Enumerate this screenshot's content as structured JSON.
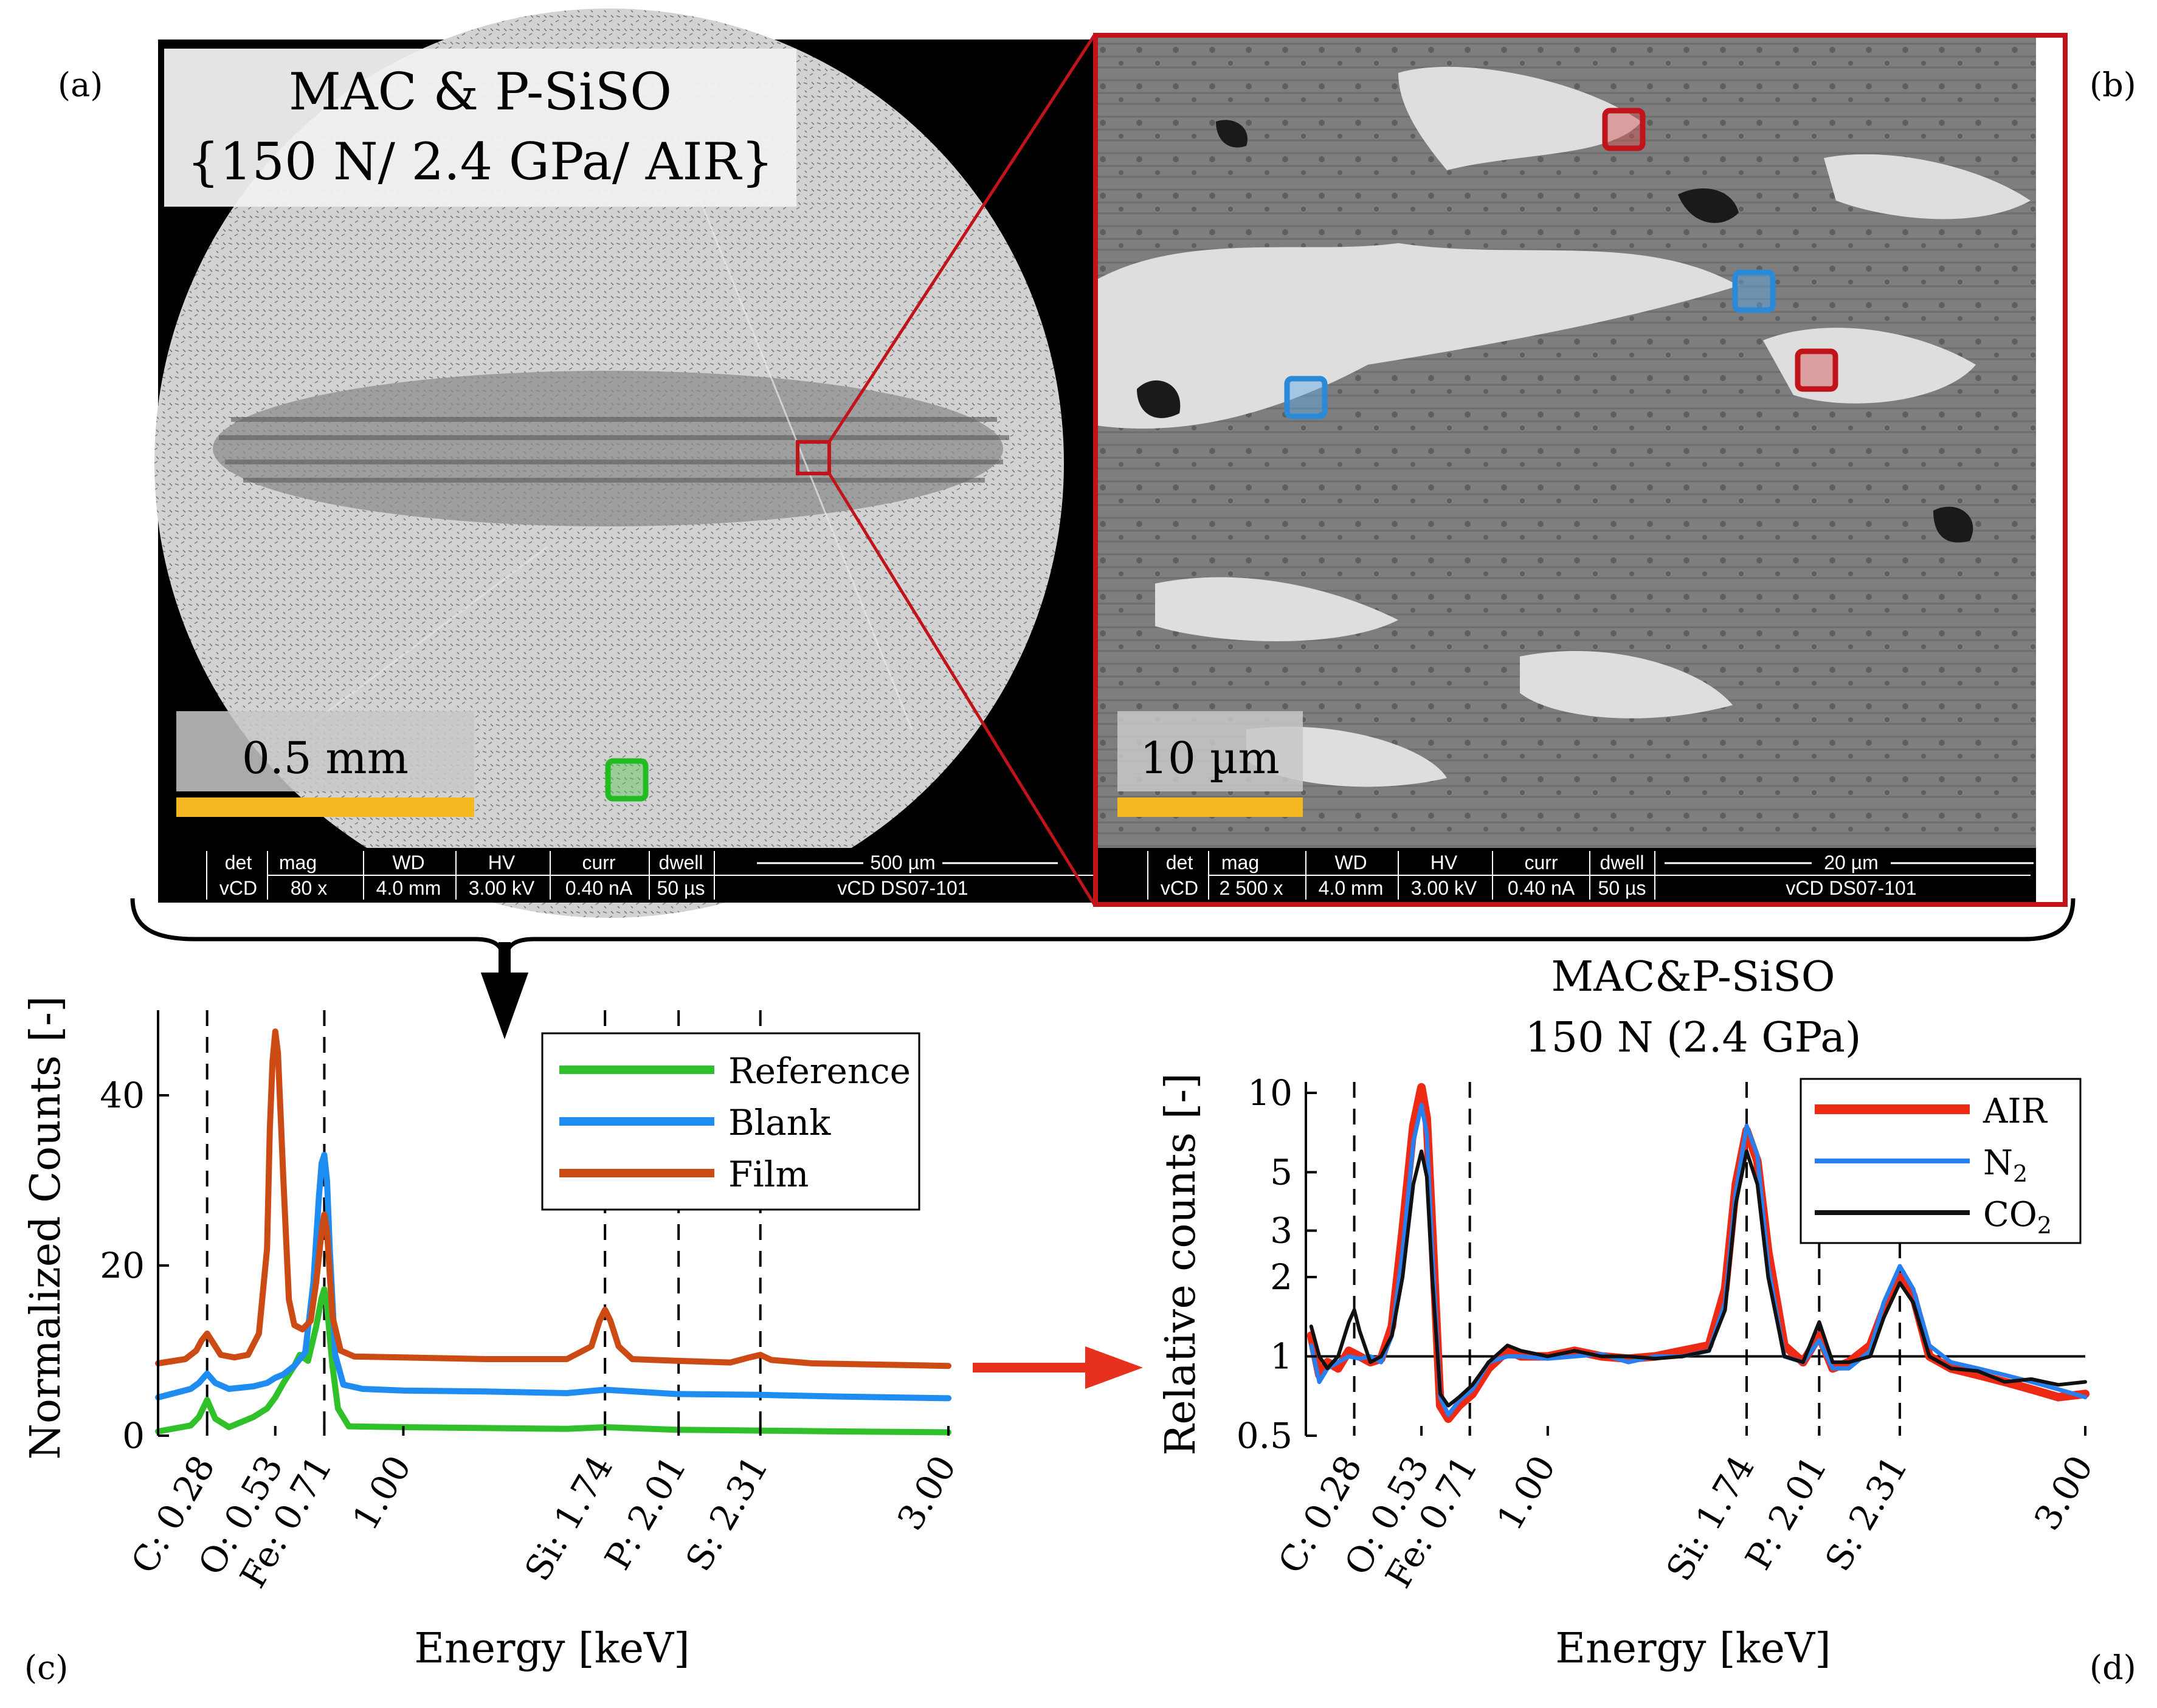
{
  "panel_labels": {
    "a": "(a)",
    "b": "(b)",
    "c": "(c)",
    "d": "(d)"
  },
  "sem_a": {
    "title_line1": "MAC & P-SiSO",
    "title_line2": "{150 N/ 2.4 GPa/ AIR}",
    "scalebar_label": "0.5 mm",
    "info_bar": {
      "headers": [
        "det",
        "mag",
        "WD",
        "HV",
        "curr",
        "dwell",
        "500 µm"
      ],
      "values": [
        "vCD",
        "80 x",
        "4.0 mm",
        "3.00 kV",
        "0.40 nA",
        "50 µs",
        "vCD DS07-101"
      ]
    }
  },
  "sem_b": {
    "scalebar_label": "10 µm",
    "info_bar": {
      "headers": [
        "det",
        "mag",
        "WD",
        "HV",
        "curr",
        "dwell",
        "20 µm"
      ],
      "values": [
        "vCD",
        "2 500 x",
        "4.0 mm",
        "3.00 kV",
        "0.40 nA",
        "50 µs",
        "vCD DS07-101"
      ]
    }
  },
  "colors": {
    "reference": "#2fc02a",
    "blank": "#1e8cf0",
    "film": "#cc4a14",
    "air": "#ef2a14",
    "n2": "#2a7fef",
    "co2": "#111111",
    "highlight_red": "#c0141a",
    "highlight_blue": "#2a8ad8",
    "highlight_green": "#22bb22",
    "scalebar": "#f5b820"
  },
  "chart_data": [
    {
      "id": "c",
      "type": "line",
      "title": "",
      "xlabel": "Energy [keV]",
      "ylabel": "Normalized Counts [-]",
      "xlim": [
        0.1,
        3.0
      ],
      "ylim": [
        0,
        50
      ],
      "yticks": [
        0,
        20,
        40
      ],
      "xticks": [
        {
          "value": 0.28,
          "label": "C: 0.28"
        },
        {
          "value": 0.53,
          "label": "O: 0.53"
        },
        {
          "value": 0.71,
          "label": "Fe: 0.71"
        },
        {
          "value": 1.0,
          "label": "1.00"
        },
        {
          "value": 1.74,
          "label": "Si: 1.74"
        },
        {
          "value": 2.01,
          "label": "P: 2.01"
        },
        {
          "value": 2.31,
          "label": "S: 2.31"
        },
        {
          "value": 3.0,
          "label": "3.00"
        }
      ],
      "dashed_lines": [
        0.28,
        0.71,
        1.74,
        2.01,
        2.31
      ],
      "legend": "top-right",
      "series": [
        {
          "name": "Reference",
          "x": [
            0.1,
            0.22,
            0.25,
            0.28,
            0.31,
            0.36,
            0.45,
            0.5,
            0.53,
            0.56,
            0.6,
            0.62,
            0.65,
            0.68,
            0.7,
            0.71,
            0.72,
            0.74,
            0.76,
            0.8,
            1.0,
            1.3,
            1.6,
            1.74,
            2.0,
            2.31,
            2.6,
            3.0
          ],
          "y": [
            0.5,
            1.2,
            2.2,
            4.2,
            2.0,
            1.0,
            2.2,
            3.2,
            4.5,
            6.2,
            8.2,
            9.5,
            8.8,
            12.8,
            16.2,
            17.2,
            15.2,
            8.2,
            3.2,
            1.1,
            1.0,
            0.9,
            0.8,
            1.0,
            0.7,
            0.6,
            0.5,
            0.4
          ]
        },
        {
          "name": "Blank",
          "x": [
            0.1,
            0.22,
            0.25,
            0.28,
            0.31,
            0.36,
            0.45,
            0.5,
            0.53,
            0.56,
            0.6,
            0.64,
            0.67,
            0.69,
            0.7,
            0.71,
            0.72,
            0.73,
            0.75,
            0.78,
            0.85,
            1.0,
            1.3,
            1.6,
            1.74,
            2.0,
            2.31,
            2.6,
            3.0
          ],
          "y": [
            4.5,
            5.5,
            6.2,
            7.3,
            6.2,
            5.5,
            5.8,
            6.2,
            6.8,
            7.2,
            8.2,
            9.8,
            18.0,
            28.0,
            32.0,
            33.0,
            30.0,
            22.0,
            9.5,
            6.0,
            5.5,
            5.3,
            5.2,
            5.0,
            5.4,
            4.9,
            4.8,
            4.6,
            4.4
          ]
        },
        {
          "name": "Film",
          "x": [
            0.1,
            0.2,
            0.24,
            0.26,
            0.28,
            0.3,
            0.33,
            0.38,
            0.43,
            0.47,
            0.5,
            0.51,
            0.52,
            0.53,
            0.54,
            0.56,
            0.58,
            0.6,
            0.63,
            0.66,
            0.68,
            0.7,
            0.71,
            0.72,
            0.74,
            0.77,
            0.82,
            1.0,
            1.3,
            1.6,
            1.69,
            1.72,
            1.74,
            1.76,
            1.79,
            1.84,
            2.0,
            2.2,
            2.27,
            2.31,
            2.35,
            2.5,
            3.0
          ],
          "y": [
            8.5,
            9.0,
            10.0,
            11.2,
            12.0,
            11.0,
            9.5,
            9.2,
            9.5,
            12.0,
            22.0,
            36.0,
            44.0,
            47.5,
            45.0,
            30.0,
            16.0,
            13.0,
            12.5,
            13.5,
            18.0,
            24.0,
            26.0,
            24.0,
            14.0,
            10.0,
            9.3,
            9.2,
            9.0,
            9.0,
            10.5,
            13.5,
            14.8,
            13.5,
            10.5,
            9.0,
            8.8,
            8.6,
            9.2,
            9.5,
            8.9,
            8.5,
            8.2
          ]
        }
      ]
    },
    {
      "id": "d",
      "type": "line",
      "title": "MAC&P-SiSO",
      "subtitle": "150 N (2.4 GPa)",
      "xlabel": "Energy [keV]",
      "ylabel": "Relative counts [-]",
      "xscale": "linear",
      "yscale": "log",
      "xlim": [
        0.1,
        3.0
      ],
      "ylim": [
        0.5,
        11
      ],
      "yticks": [
        0.5,
        1,
        2,
        3,
        5,
        10
      ],
      "ytick_labels": [
        "0.5",
        "1",
        "2",
        "3",
        "5",
        "10"
      ],
      "xticks": [
        {
          "value": 0.28,
          "label": "C: 0.28"
        },
        {
          "value": 0.53,
          "label": "O: 0.53"
        },
        {
          "value": 0.71,
          "label": "Fe: 0.71"
        },
        {
          "value": 1.0,
          "label": "1.00"
        },
        {
          "value": 1.74,
          "label": "Si: 1.74"
        },
        {
          "value": 2.01,
          "label": "P: 2.01"
        },
        {
          "value": 2.31,
          "label": "S: 2.31"
        },
        {
          "value": 3.0,
          "label": "3.00"
        }
      ],
      "dashed_lines": [
        0.28,
        0.71,
        1.74,
        2.01,
        2.31
      ],
      "reference_line": 1,
      "legend": "top-right",
      "series": [
        {
          "name": "AIR",
          "x": [
            0.12,
            0.15,
            0.18,
            0.22,
            0.26,
            0.3,
            0.34,
            0.38,
            0.42,
            0.46,
            0.5,
            0.53,
            0.55,
            0.57,
            0.6,
            0.63,
            0.67,
            0.72,
            0.78,
            0.85,
            0.9,
            1.0,
            1.1,
            1.2,
            1.3,
            1.4,
            1.5,
            1.6,
            1.66,
            1.7,
            1.74,
            1.78,
            1.82,
            1.88,
            1.95,
            2.01,
            2.06,
            2.12,
            2.2,
            2.25,
            2.31,
            2.36,
            2.42,
            2.5,
            2.6,
            2.7,
            2.8,
            2.9,
            3.0
          ],
          "y": [
            1.2,
            0.85,
            0.95,
            0.9,
            1.05,
            1.0,
            0.95,
            0.98,
            1.3,
            3.0,
            7.5,
            10.5,
            8.0,
            3.0,
            0.65,
            0.58,
            0.65,
            0.72,
            0.9,
            1.05,
            1.0,
            1.0,
            1.05,
            1.0,
            0.98,
            1.0,
            1.05,
            1.1,
            1.8,
            4.5,
            7.2,
            5.5,
            2.5,
            1.1,
            0.95,
            1.2,
            0.9,
            0.95,
            1.1,
            1.5,
            2.0,
            1.7,
            1.0,
            0.9,
            0.85,
            0.8,
            0.75,
            0.7,
            0.72
          ]
        },
        {
          "name": "N2",
          "x": [
            0.12,
            0.15,
            0.18,
            0.22,
            0.26,
            0.3,
            0.34,
            0.38,
            0.42,
            0.46,
            0.5,
            0.53,
            0.55,
            0.57,
            0.6,
            0.63,
            0.67,
            0.72,
            0.78,
            0.85,
            0.9,
            1.0,
            1.1,
            1.2,
            1.3,
            1.4,
            1.5,
            1.6,
            1.66,
            1.7,
            1.74,
            1.78,
            1.82,
            1.88,
            1.95,
            2.01,
            2.06,
            2.12,
            2.2,
            2.25,
            2.31,
            2.36,
            2.42,
            2.5,
            2.6,
            2.7,
            2.8,
            2.9,
            3.0
          ],
          "y": [
            1.1,
            0.8,
            0.9,
            0.95,
            1.0,
            0.98,
            1.0,
            0.95,
            1.2,
            2.5,
            6.5,
            9.0,
            7.0,
            2.5,
            0.7,
            0.6,
            0.68,
            0.75,
            0.95,
            1.0,
            1.0,
            0.98,
            1.0,
            1.02,
            0.95,
            1.0,
            1.0,
            1.05,
            1.6,
            4.2,
            7.5,
            5.8,
            2.2,
            1.0,
            0.95,
            1.15,
            0.9,
            0.9,
            1.05,
            1.6,
            2.2,
            1.8,
            1.1,
            0.95,
            0.9,
            0.85,
            0.8,
            0.75,
            0.7
          ]
        },
        {
          "name": "CO2",
          "x": [
            0.12,
            0.15,
            0.18,
            0.22,
            0.26,
            0.28,
            0.3,
            0.34,
            0.38,
            0.42,
            0.46,
            0.5,
            0.53,
            0.55,
            0.57,
            0.6,
            0.63,
            0.67,
            0.72,
            0.78,
            0.85,
            0.9,
            1.0,
            1.1,
            1.2,
            1.3,
            1.4,
            1.5,
            1.6,
            1.66,
            1.7,
            1.74,
            1.78,
            1.82,
            1.88,
            1.95,
            2.01,
            2.06,
            2.12,
            2.2,
            2.25,
            2.31,
            2.36,
            2.42,
            2.5,
            2.6,
            2.7,
            2.8,
            2.9,
            3.0
          ],
          "y": [
            1.3,
            1.0,
            0.9,
            1.0,
            1.35,
            1.5,
            1.25,
            0.95,
            1.0,
            1.2,
            2.0,
            4.5,
            6.0,
            4.8,
            2.0,
            0.72,
            0.65,
            0.7,
            0.78,
            0.95,
            1.1,
            1.05,
            1.0,
            1.05,
            1.0,
            1.0,
            0.98,
            1.0,
            1.05,
            1.5,
            3.8,
            6.0,
            4.5,
            2.0,
            1.0,
            0.95,
            1.35,
            0.95,
            0.95,
            1.0,
            1.4,
            1.9,
            1.6,
            1.0,
            0.9,
            0.88,
            0.8,
            0.82,
            0.78,
            0.8
          ]
        }
      ]
    }
  ]
}
